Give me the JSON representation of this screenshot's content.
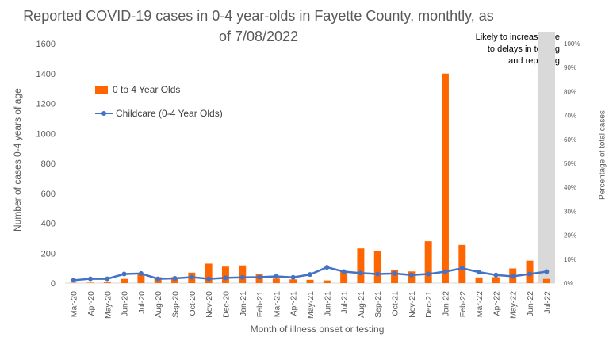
{
  "chart_data": {
    "type": "bar",
    "title": "Reported COVID-19 cases in 0-4 year-olds in Fayette County, monthtly, as of 7/08/2022",
    "title_line1": "Reported COVID-19 cases in 0-4 year-olds in Fayette County, monthtly, as",
    "title_line2": "of 7/08/2022",
    "xlabel": "Month of illness onset or testing",
    "ylabel": "Number of cases 0-4 years of age",
    "ylabel_right": "Percentage of total cases",
    "annotation": [
      "Likely to increase due",
      "to delays in testing",
      "and reporting"
    ],
    "ylim": [
      0,
      1600
    ],
    "y_ticks": [
      "0",
      "200",
      "400",
      "600",
      "800",
      "1000",
      "1200",
      "1400",
      "1600"
    ],
    "y2lim": [
      0,
      100
    ],
    "y2_ticks": [
      "0%",
      "10%",
      "20%",
      "30%",
      "40%",
      "50%",
      "60%",
      "70%",
      "80%",
      "90%",
      "100%"
    ],
    "categories": [
      "Mar-20",
      "Apr-20",
      "May-20",
      "Jun-20",
      "Jul-20",
      "Aug-20",
      "Sep-20",
      "Oct-20",
      "Nov-20",
      "Dec-20",
      "Jan-21",
      "Feb-21",
      "Mar-21",
      "Apr-21",
      "May-21",
      "Jun-21",
      "Jul-21",
      "Aug-21",
      "Sep-21",
      "Oct-21",
      "Nov-21",
      "Dec-21",
      "Jan-22",
      "Feb-22",
      "Mar-22",
      "Apr-22",
      "May-22",
      "Jun-22",
      "Jul-22"
    ],
    "series": [
      {
        "name": "0 to 4 Year Olds",
        "type": "bar",
        "axis": "left",
        "color": "#FF6600",
        "values": [
          2,
          3,
          5,
          28,
          60,
          40,
          40,
          70,
          130,
          110,
          118,
          58,
          30,
          25,
          22,
          18,
          78,
          232,
          212,
          85,
          78,
          280,
          1400,
          255,
          38,
          40,
          98,
          150,
          28
        ]
      },
      {
        "name": "Childcare (0-4 Year Olds)",
        "type": "line",
        "axis": "right",
        "color": "#4472C4",
        "values": [
          1.2,
          1.8,
          1.8,
          3.8,
          4.0,
          1.8,
          2.0,
          2.5,
          1.8,
          2.2,
          2.4,
          2.5,
          2.8,
          2.4,
          3.6,
          6.6,
          4.8,
          4.2,
          3.8,
          4.0,
          3.4,
          3.8,
          4.8,
          6.2,
          4.6,
          3.4,
          2.8,
          3.8,
          4.8
        ]
      }
    ],
    "highlight_category": "Jul-22",
    "legend_position": "upper-left",
    "grid": false,
    "colors": {
      "highlight_band": "#D9D9D9",
      "axis_text": "#595959"
    }
  }
}
